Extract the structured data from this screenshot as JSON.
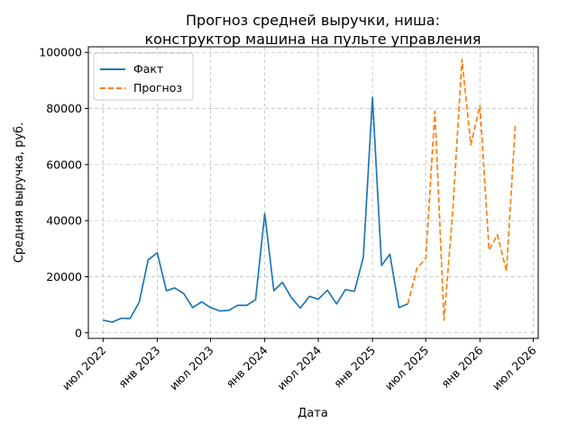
{
  "chart_data": {
    "type": "line",
    "title": "Прогноз средней выручки, ниша:\nконструктор машина на пульте управления",
    "xlabel": "Дата",
    "ylabel": "Средняя выручка, руб.",
    "ylim": [
      -2000,
      102000
    ],
    "xlim": [
      "2022-05-12",
      "2026-07-18"
    ],
    "grid": true,
    "legend_position": "top-left",
    "y_ticks": [
      0,
      20000,
      40000,
      60000,
      80000,
      100000
    ],
    "x_ticks": [
      {
        "date": "2022-07-01",
        "label": "июл 2022"
      },
      {
        "date": "2023-01-01",
        "label": "янв 2023"
      },
      {
        "date": "2023-07-01",
        "label": "июл 2023"
      },
      {
        "date": "2024-01-01",
        "label": "янв 2024"
      },
      {
        "date": "2024-07-01",
        "label": "июл 2024"
      },
      {
        "date": "2025-01-01",
        "label": "янв 2025"
      },
      {
        "date": "2025-07-01",
        "label": "июл 2025"
      },
      {
        "date": "2026-01-01",
        "label": "янв 2026"
      },
      {
        "date": "2026-07-01",
        "label": "июл 2026"
      }
    ],
    "series": [
      {
        "name": "Факт",
        "color": "#1f77b4",
        "style": "solid",
        "x": [
          "2022-07-01",
          "2022-08-01",
          "2022-09-01",
          "2022-10-01",
          "2022-11-01",
          "2022-12-01",
          "2023-01-01",
          "2023-02-01",
          "2023-03-01",
          "2023-04-01",
          "2023-05-01",
          "2023-06-01",
          "2023-07-01",
          "2023-08-01",
          "2023-09-01",
          "2023-10-01",
          "2023-11-01",
          "2023-12-01",
          "2024-01-01",
          "2024-02-01",
          "2024-03-01",
          "2024-04-01",
          "2024-05-01",
          "2024-06-01",
          "2024-07-01",
          "2024-08-01",
          "2024-09-01",
          "2024-10-01",
          "2024-11-01",
          "2024-12-01",
          "2025-01-01",
          "2025-02-01",
          "2025-03-01",
          "2025-04-01",
          "2025-05-01"
        ],
        "values": [
          4500,
          3800,
          5200,
          5100,
          11000,
          26000,
          28500,
          15000,
          16000,
          14000,
          9000,
          11000,
          9000,
          7800,
          8000,
          9800,
          9800,
          11800,
          42500,
          15000,
          18000,
          12500,
          8800,
          13000,
          12000,
          15200,
          10300,
          15400,
          14800,
          27000,
          84000,
          24000,
          28000,
          9000,
          10300
        ]
      },
      {
        "name": "Прогноз",
        "color": "#ff7f0e",
        "style": "dashed",
        "x": [
          "2025-05-01",
          "2025-06-01",
          "2025-07-01",
          "2025-08-01",
          "2025-09-01",
          "2025-10-01",
          "2025-11-01",
          "2025-12-01",
          "2026-01-01",
          "2026-02-01",
          "2026-03-01",
          "2026-04-01",
          "2026-05-01"
        ],
        "values": [
          10300,
          23000,
          26500,
          79000,
          4500,
          44000,
          97500,
          67000,
          81000,
          29500,
          35000,
          22000,
          74000
        ]
      }
    ]
  }
}
